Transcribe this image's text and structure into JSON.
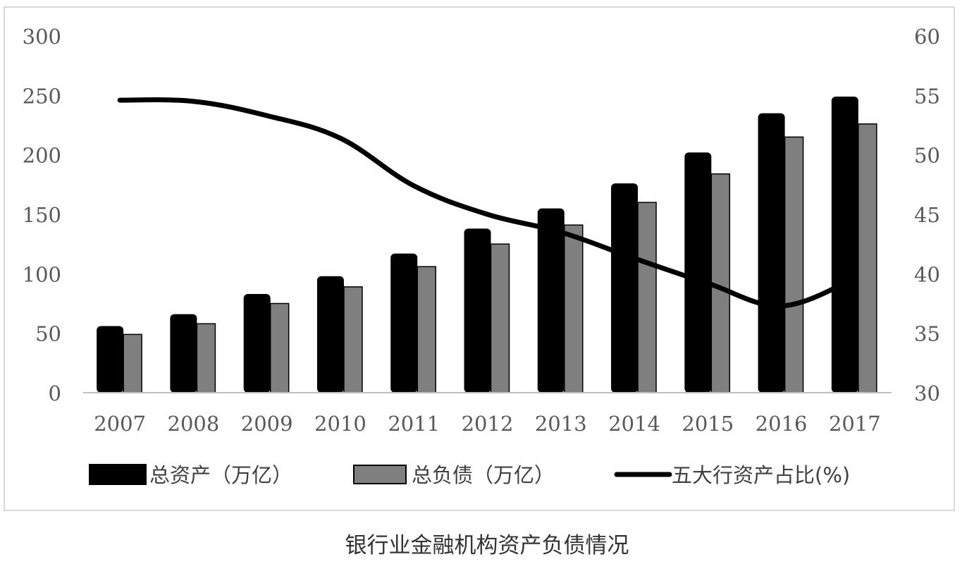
{
  "caption": "银行业金融机构资产负债情况",
  "chart_data": {
    "type": "bar",
    "categories": [
      "2007",
      "2008",
      "2009",
      "2010",
      "2011",
      "2012",
      "2013",
      "2014",
      "2015",
      "2016",
      "2017"
    ],
    "series": [
      {
        "name": "总资产（万亿）",
        "type": "bar",
        "axis": "left",
        "color": "#000000",
        "values": [
          56,
          66,
          83,
          98,
          117,
          138,
          155,
          176,
          202,
          235,
          249
        ]
      },
      {
        "name": "总负债（万亿）",
        "type": "bar",
        "axis": "left",
        "color": "#7f7f7f",
        "values": [
          49,
          58,
          75,
          89,
          106,
          125,
          141,
          160,
          184,
          215,
          226
        ]
      },
      {
        "name": "五大行资产占比(%)",
        "type": "line",
        "axis": "right",
        "color": "#000000",
        "values": [
          54.6,
          54.5,
          53.3,
          51.4,
          47.4,
          45.0,
          43.5,
          41.3,
          39.2,
          37.3,
          39.6
        ]
      }
    ],
    "left_axis": {
      "min": 0,
      "max": 300,
      "ticks": [
        "0",
        "50",
        "100",
        "150",
        "200",
        "250",
        "300"
      ]
    },
    "right_axis": {
      "min": 30,
      "max": 60,
      "ticks": [
        "30",
        "35",
        "40",
        "45",
        "50",
        "55",
        "60"
      ]
    },
    "legend_position": "bottom",
    "grid": false
  }
}
